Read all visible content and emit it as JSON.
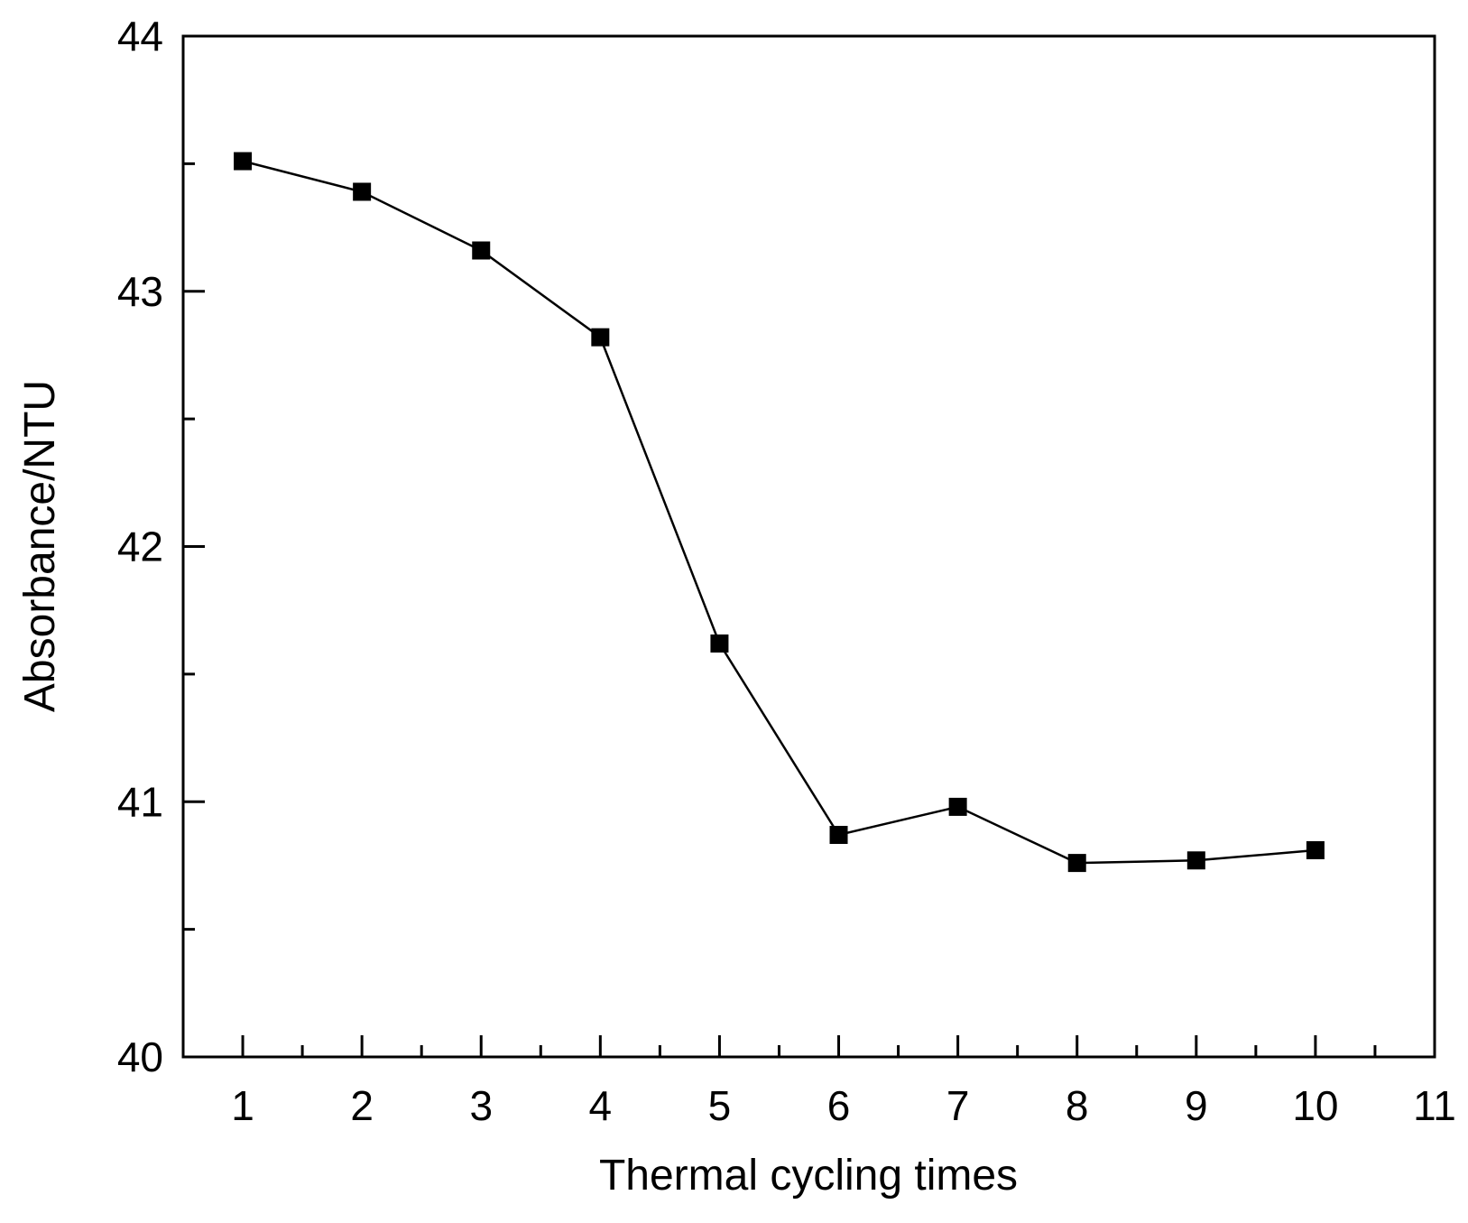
{
  "chart_data": {
    "type": "line",
    "title": "",
    "xlabel": "Thermal cycling times",
    "ylabel": "Absorbance/NTU",
    "x": [
      1,
      2,
      3,
      4,
      5,
      6,
      7,
      8,
      9,
      10
    ],
    "series": [
      {
        "name": "Absorbance",
        "marker": "square",
        "color": "#000000",
        "values": [
          43.51,
          43.39,
          43.16,
          42.82,
          41.62,
          40.87,
          40.98,
          40.76,
          40.77,
          40.81
        ]
      }
    ],
    "xlim": [
      0.5,
      11
    ],
    "ylim": [
      40,
      44
    ],
    "x_ticks": [
      1,
      2,
      3,
      4,
      5,
      6,
      7,
      8,
      9,
      10,
      11
    ],
    "y_ticks": [
      40,
      41,
      42,
      43,
      44
    ],
    "y_minor_step": 0.5,
    "x_minor_step": 0.5,
    "grid": false,
    "legend": "none"
  }
}
